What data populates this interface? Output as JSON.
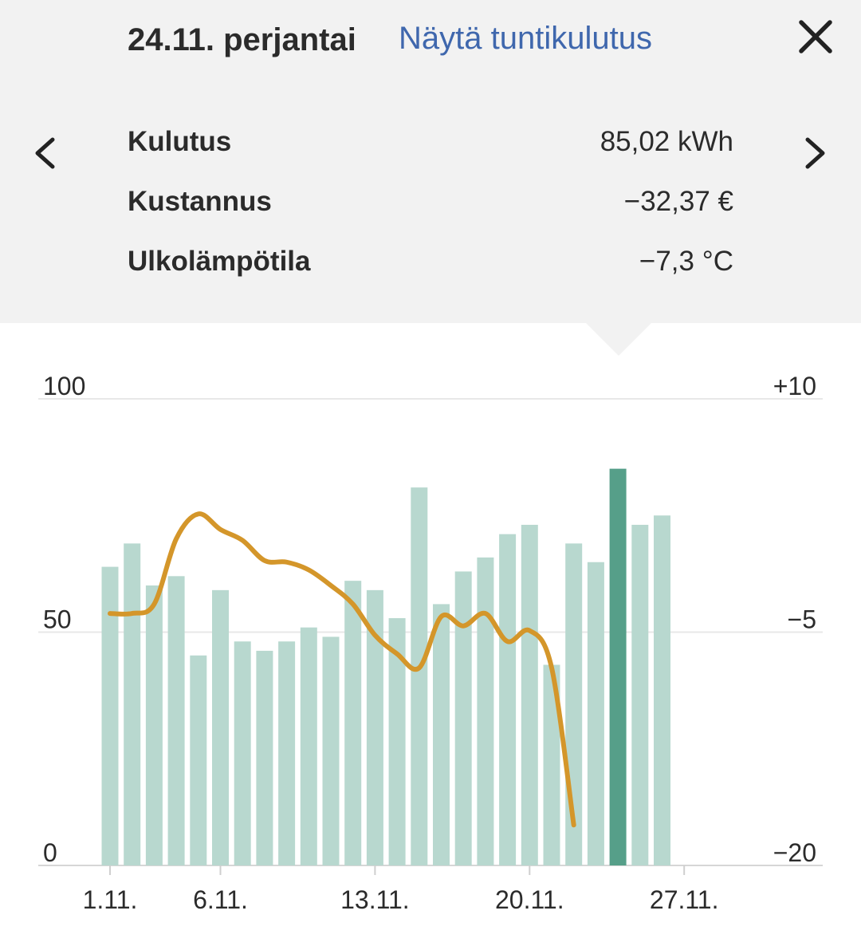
{
  "header": {
    "date_label": "24.11. perjantai",
    "hourly_link": "Näytä tuntikulutus"
  },
  "icons": {
    "close": "close-icon",
    "prev": "chevron-left-icon",
    "next": "chevron-right-icon"
  },
  "summary": [
    {
      "label": "Kulutus",
      "value": "85,02 kWh"
    },
    {
      "label": "Kustannus",
      "value": "−32,37 €"
    },
    {
      "label": "Ulkolämpötila",
      "value": "−7,3 °C"
    }
  ],
  "colors": {
    "bar": "#b8d8cf",
    "bar_selected": "#569f89",
    "temperature_line": "#d4962a",
    "link": "#3f67ad"
  },
  "chart_data": {
    "type": "bar",
    "categories": [
      "1.11.",
      "2.11.",
      "3.11.",
      "4.11.",
      "5.11.",
      "6.11.",
      "7.11.",
      "8.11.",
      "9.11.",
      "10.11.",
      "11.11.",
      "12.11.",
      "13.11.",
      "14.11.",
      "15.11.",
      "16.11.",
      "17.11.",
      "18.11.",
      "19.11.",
      "20.11.",
      "21.11.",
      "22.11.",
      "23.11.",
      "24.11.",
      "25.11.",
      "26.11.",
      "27.11.",
      "28.11.",
      "29.11.",
      "30.11."
    ],
    "x_tick_labels": [
      {
        "category": "1.11.",
        "label": "1.11."
      },
      {
        "category": "6.11.",
        "label": "6.11."
      },
      {
        "category": "13.11.",
        "label": "13.11."
      },
      {
        "category": "20.11.",
        "label": "20.11."
      },
      {
        "category": "27.11.",
        "label": "27.11."
      }
    ],
    "selected_category": "24.11.",
    "series": [
      {
        "type": "bar",
        "axis": "left",
        "values": [
          64,
          69,
          60,
          62,
          45,
          59,
          48,
          46,
          48,
          51,
          49,
          61,
          59,
          53,
          81,
          56,
          63,
          66,
          71,
          73,
          43,
          69,
          65,
          85.02,
          73,
          75,
          null,
          null,
          null,
          null
        ]
      },
      {
        "type": "line",
        "axis": "right",
        "values": [
          -3.8,
          -3.8,
          -3.2,
          1.0,
          2.6,
          1.6,
          0.9,
          -0.4,
          -0.5,
          -1.0,
          -2.0,
          -3.2,
          -5.2,
          -6.4,
          -7.3,
          -4.0,
          -4.6,
          -3.8,
          -5.6,
          -4.9,
          -7.3,
          -17.4,
          null,
          null,
          null,
          null,
          null,
          null,
          null,
          null
        ]
      }
    ],
    "y_left": {
      "ticks": [
        "100",
        "50",
        "0"
      ],
      "min": 0,
      "max": 100
    },
    "y_right": {
      "ticks": [
        "+10",
        "−5",
        "−20"
      ],
      "min": -20,
      "max": 10
    },
    "grid": true
  }
}
